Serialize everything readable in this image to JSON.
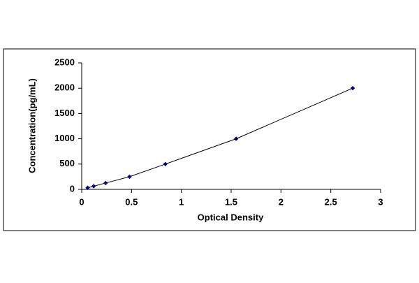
{
  "chart_data": {
    "type": "line",
    "x_label": "Optical Density",
    "y_label": "Concentration(pg/mL)",
    "series": [
      {
        "x": [
          0.06,
          0.12,
          0.24,
          0.48,
          0.84,
          1.55,
          2.72
        ],
        "values": [
          31.25,
          62.5,
          125,
          250,
          500,
          1000,
          2000
        ],
        "color": "#000000",
        "marker_color": "#000080"
      }
    ],
    "xlim": [
      0,
      3
    ],
    "xticks": [
      0,
      0.5,
      1,
      1.5,
      2,
      2.5,
      3
    ],
    "ylim": [
      0,
      2500
    ],
    "yticks": [
      0,
      500,
      1000,
      1500,
      2000,
      2500
    ],
    "grid": false
  }
}
